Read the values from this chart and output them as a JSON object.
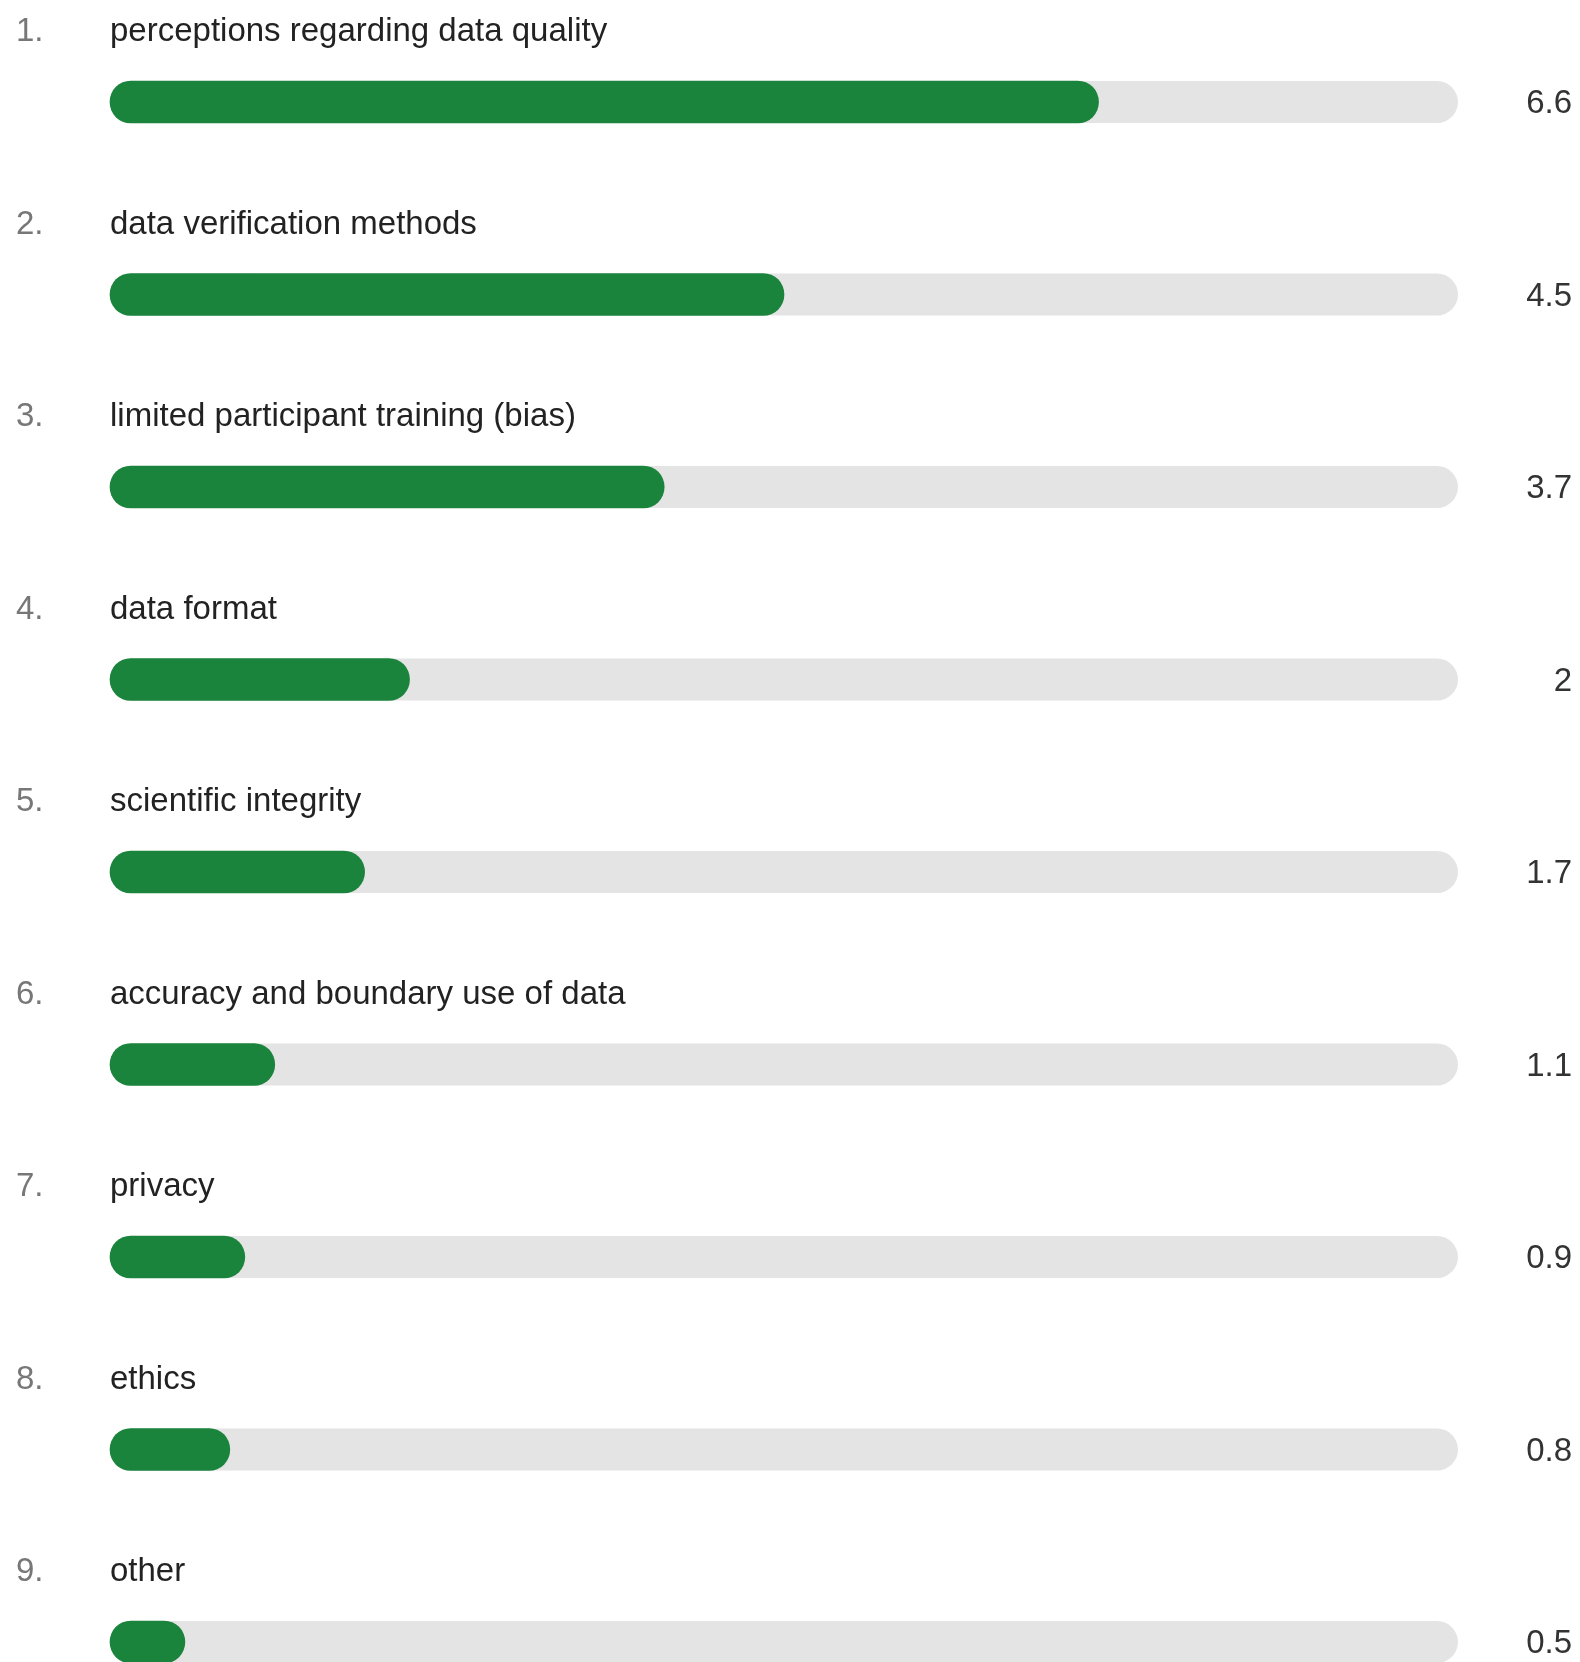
{
  "chart_data": {
    "type": "bar",
    "orientation": "horizontal",
    "categories": [
      "1. perceptions regarding data quality",
      "2. data verification methods",
      "3. limited participant training (bias)",
      "4. data format",
      "5. scientific integrity",
      "6. accuracy and boundary use of data",
      "7. privacy",
      "8. ethics",
      "9. other"
    ],
    "values": [
      6.6,
      4.5,
      3.7,
      2,
      1.7,
      1.1,
      0.9,
      0.8,
      0.5
    ],
    "color": "#1b843c",
    "xlim": [
      0,
      9
    ],
    "data_labels": true,
    "tick_labels": false,
    "legend": false
  }
}
